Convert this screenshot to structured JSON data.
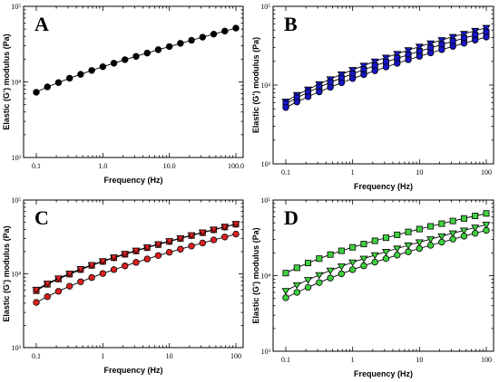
{
  "colors": {
    "A": "#000000",
    "B": "#1515c8",
    "C": "#e02020",
    "D": "#3fd13f"
  },
  "chart_data": [
    {
      "panel": "A",
      "type": "scatter",
      "scale": "log-log",
      "xlabel": "Frequency (Hz)",
      "ylabel": "Elastic (G') modulus (Pa)",
      "xlim": [
        0.1,
        100
      ],
      "ylim": [
        1000,
        100000
      ],
      "x_ticks": [
        "0.1",
        "1.0",
        "10.0",
        "100.0"
      ],
      "y_ticks": [
        "10³",
        "10⁴",
        "10⁵"
      ],
      "series": [
        {
          "marker": "circle",
          "color": "#000000",
          "x": [
            0.1,
            0.1468,
            0.2154,
            0.3162,
            0.4642,
            0.6813,
            1.0,
            1.468,
            2.154,
            3.162,
            4.642,
            6.813,
            10,
            14.68,
            21.54,
            31.62,
            46.42,
            68.13,
            100
          ],
          "y": [
            7300,
            8600,
            9800,
            11200,
            12600,
            14200,
            15900,
            17700,
            19700,
            21800,
            24100,
            26700,
            29400,
            32400,
            35600,
            39100,
            42900,
            47000,
            51500
          ]
        }
      ]
    },
    {
      "panel": "B",
      "type": "scatter",
      "scale": "log-log",
      "xlabel": "Frequency (Hz)",
      "ylabel": "Elastic (G') modulus (Pa)",
      "xlim": [
        0.1,
        100
      ],
      "ylim": [
        1000,
        100000
      ],
      "x_ticks": [
        "0.1",
        "1",
        "10",
        "100"
      ],
      "y_ticks": [
        "10³",
        "10⁴",
        "10⁵"
      ],
      "series": [
        {
          "marker": "triangle-down",
          "color": "#1515c8",
          "x": [
            0.1,
            0.1468,
            0.2154,
            0.3162,
            0.4642,
            0.6813,
            1.0,
            1.468,
            2.154,
            3.162,
            4.642,
            6.813,
            10,
            14.68,
            21.54,
            31.62,
            46.42,
            68.13,
            100
          ],
          "y": [
            6200,
            7500,
            8800,
            10300,
            11900,
            13700,
            15600,
            17700,
            20000,
            22400,
            25000,
            27800,
            30800,
            34000,
            37400,
            41000,
            44900,
            49000,
            53500
          ]
        },
        {
          "marker": "square",
          "color": "#1515c8",
          "x": [
            0.1,
            0.1468,
            0.2154,
            0.3162,
            0.4642,
            0.6813,
            1.0,
            1.468,
            2.154,
            3.162,
            4.642,
            6.813,
            10,
            14.68,
            21.54,
            31.62,
            46.42,
            68.13,
            100
          ],
          "y": [
            5800,
            6900,
            8100,
            9400,
            10800,
            12300,
            13900,
            15700,
            17600,
            19700,
            21900,
            24300,
            26900,
            29700,
            32700,
            35900,
            39400,
            43100,
            47200
          ]
        },
        {
          "marker": "circle",
          "color": "#1515c8",
          "x": [
            0.1,
            0.1468,
            0.2154,
            0.3162,
            0.4642,
            0.6813,
            1.0,
            1.468,
            2.154,
            3.162,
            4.642,
            6.813,
            10,
            14.68,
            21.54,
            31.62,
            46.42,
            68.13,
            100
          ],
          "y": [
            5200,
            6100,
            7100,
            8200,
            9400,
            10700,
            12100,
            13600,
            15200,
            17000,
            18900,
            21000,
            23200,
            25600,
            28200,
            31000,
            34000,
            37300,
            40800
          ]
        }
      ]
    },
    {
      "panel": "C",
      "type": "scatter",
      "scale": "log-log",
      "xlabel": "Frequency (Hz)",
      "ylabel": "Elastic (G') modulus (Pa)",
      "xlim": [
        0.1,
        100
      ],
      "ylim": [
        1000,
        100000
      ],
      "x_ticks": [
        "0.1",
        "1",
        "10",
        "100"
      ],
      "y_ticks": [
        "10³",
        "10⁴",
        "10⁵"
      ],
      "series": [
        {
          "marker": "square",
          "color": "#e02020",
          "x": [
            0.1,
            0.1468,
            0.2154,
            0.3162,
            0.4642,
            0.6813,
            1.0,
            1.468,
            2.154,
            3.162,
            4.642,
            6.813,
            10,
            14.68,
            21.54,
            31.62,
            46.42,
            68.13,
            100
          ],
          "y": [
            5900,
            7200,
            8500,
            9900,
            11400,
            13000,
            14700,
            16500,
            18400,
            20400,
            22600,
            24900,
            27400,
            30100,
            33000,
            36100,
            39500,
            43100,
            47000
          ]
        },
        {
          "marker": "triangle-down",
          "color": "#e02020",
          "x": [
            0.1,
            0.1468,
            0.2154,
            0.3162,
            0.4642,
            0.6813,
            1.0,
            1.468,
            2.154,
            3.162,
            4.642,
            6.813,
            10,
            14.68,
            21.54,
            31.62,
            46.42,
            68.13,
            100
          ],
          "y": [
            6100,
            7400,
            8700,
            10100,
            11600,
            13200,
            14900,
            16700,
            18700,
            20700,
            22900,
            25300,
            27800,
            30500,
            33400,
            36500,
            39900,
            43500,
            47400
          ]
        },
        {
          "marker": "circle",
          "color": "#e02020",
          "x": [
            0.1,
            0.1468,
            0.2154,
            0.3162,
            0.4642,
            0.6813,
            1.0,
            1.468,
            2.154,
            3.162,
            4.642,
            6.813,
            10,
            14.68,
            21.54,
            31.62,
            46.42,
            68.13,
            100
          ],
          "y": [
            4100,
            4900,
            5800,
            6800,
            7800,
            8900,
            10100,
            11400,
            12800,
            14300,
            15900,
            17700,
            19600,
            21600,
            23800,
            26200,
            28800,
            31600,
            34600
          ]
        }
      ]
    },
    {
      "panel": "D",
      "type": "scatter",
      "scale": "log-log",
      "xlabel": "Frequency (Hz)",
      "ylabel": "Elastic (G') modulus (Pa)",
      "xlim": [
        0.1,
        100
      ],
      "ylim": [
        1000,
        100000
      ],
      "x_ticks": [
        "0.1",
        "1",
        "10",
        "100"
      ],
      "y_ticks": [
        "10³",
        "10⁴",
        "10⁵"
      ],
      "series": [
        {
          "marker": "square",
          "color": "#3fd13f",
          "x": [
            0.1,
            0.1468,
            0.2154,
            0.3162,
            0.4642,
            0.6813,
            1.0,
            1.468,
            2.154,
            3.162,
            4.642,
            6.813,
            10,
            14.68,
            21.54,
            31.62,
            46.42,
            68.13,
            100
          ],
          "y": [
            10800,
            12700,
            14700,
            16800,
            19000,
            21300,
            23700,
            26200,
            28900,
            31700,
            34700,
            37900,
            41300,
            44900,
            48700,
            52800,
            57100,
            61700,
            66500
          ]
        },
        {
          "marker": "triangle-down",
          "color": "#3fd13f",
          "x": [
            0.1,
            0.1468,
            0.2154,
            0.3162,
            0.4642,
            0.6813,
            1.0,
            1.468,
            2.154,
            3.162,
            4.642,
            6.813,
            10,
            14.68,
            21.54,
            31.62,
            46.42,
            68.13,
            100
          ],
          "y": [
            6300,
            7500,
            8800,
            10200,
            11700,
            13300,
            15000,
            16800,
            18700,
            20700,
            22900,
            25200,
            27700,
            30400,
            33300,
            36400,
            39700,
            43300,
            47200
          ]
        },
        {
          "marker": "circle",
          "color": "#3fd13f",
          "x": [
            0.1,
            0.1468,
            0.2154,
            0.3162,
            0.4642,
            0.6813,
            1.0,
            1.468,
            2.154,
            3.162,
            4.642,
            6.813,
            10,
            14.68,
            21.54,
            31.62,
            46.42,
            68.13,
            100
          ],
          "y": [
            5100,
            6000,
            7000,
            8100,
            9300,
            10600,
            12000,
            13500,
            15100,
            16800,
            18700,
            20700,
            22900,
            25200,
            27700,
            30400,
            33300,
            36400,
            39700
          ]
        }
      ]
    }
  ]
}
